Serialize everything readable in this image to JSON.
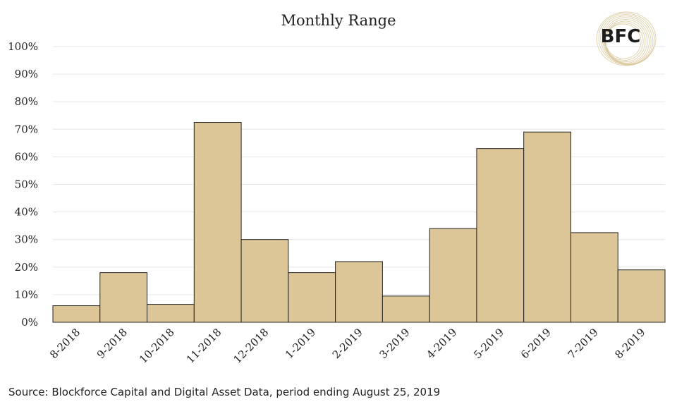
{
  "chart_data": {
    "type": "bar",
    "title": "Monthly Range",
    "categories": [
      "8-2018",
      "9-2018",
      "10-2018",
      "11-2018",
      "12-2018",
      "1-2019",
      "2-2019",
      "3-2019",
      "4-2019",
      "5-2019",
      "6-2019",
      "7-2019",
      "8-2019"
    ],
    "values": [
      6,
      18,
      6.5,
      72.5,
      30,
      18,
      22,
      9.5,
      34,
      63,
      69,
      32.5,
      19
    ],
    "yticks": [
      "0%",
      "10%",
      "20%",
      "30%",
      "40%",
      "50%",
      "60%",
      "70%",
      "80%",
      "90%",
      "100%"
    ],
    "ylim": [
      0,
      100
    ],
    "grid": true,
    "bar_color": "#dcc697",
    "bar_edge_color": "#222222",
    "grid_color": "#e6e6e6"
  },
  "logo": {
    "text": "BFC",
    "color": "#d8c79a"
  },
  "source_note": "Source: Blockforce Capital and Digital Asset Data, period ending August 25, 2019"
}
